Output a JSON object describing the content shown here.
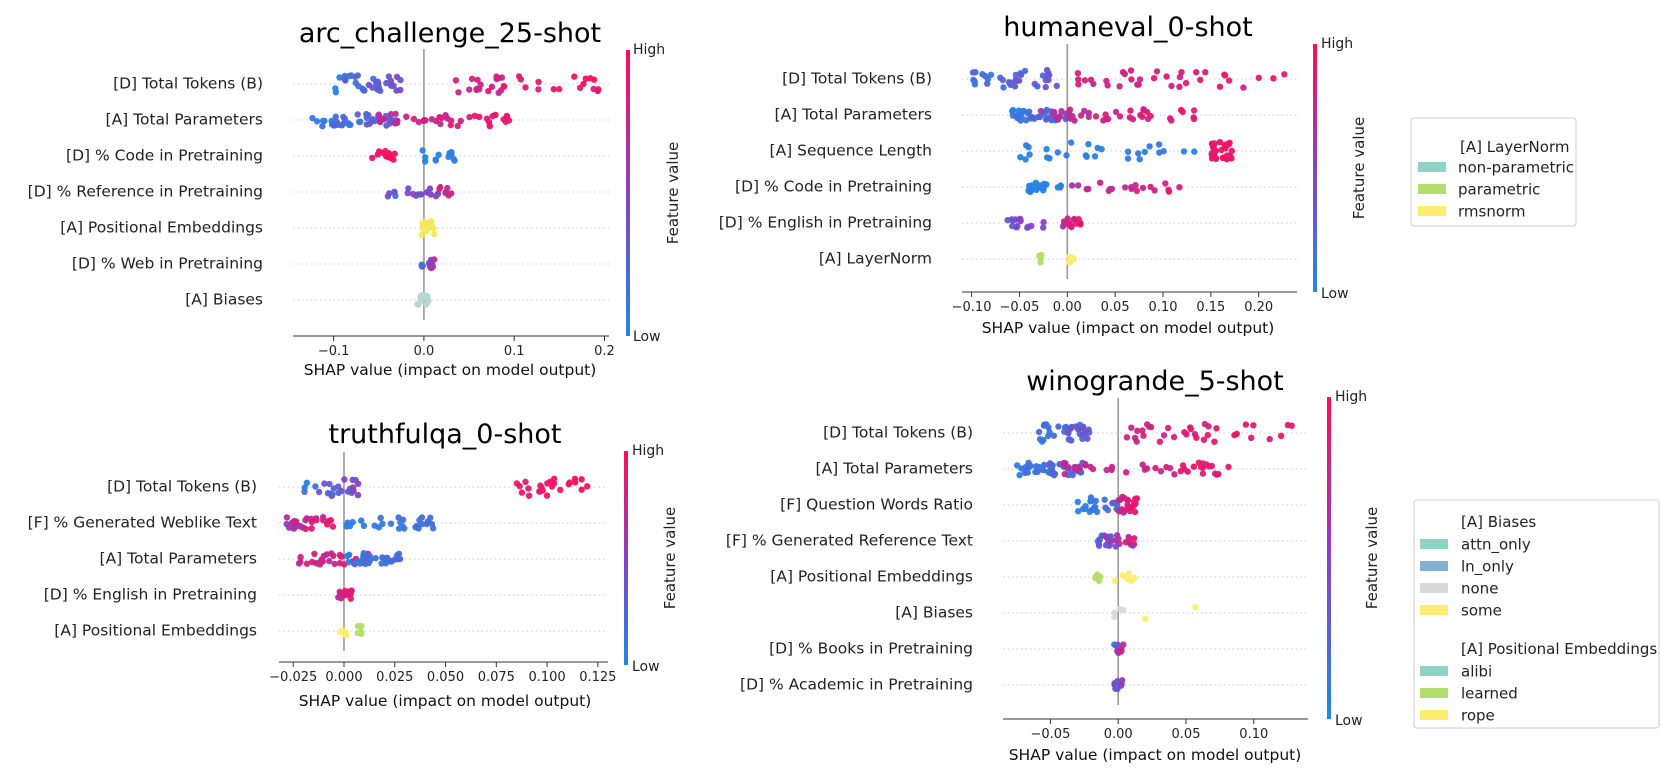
{
  "colors": {
    "low": "#1e88e5",
    "high": "#ff0d57",
    "zero_line": "#999999",
    "row_line": "#cccccc",
    "axis": "#333333"
  },
  "colorbar": {
    "high_label": "High",
    "low_label": "Low",
    "title": "Feature value"
  },
  "chart_data": [
    {
      "type": "scatter",
      "subtype": "shap_beeswarm",
      "title": "arc_challenge_25-shot",
      "xlabel": "SHAP value (impact on model output)",
      "xlim": [
        -0.145,
        0.205
      ],
      "xticks": [
        -0.1,
        0.0,
        0.1,
        0.2
      ],
      "xtick_labels": [
        "−0.1",
        "0.0",
        "0.1",
        "0.2"
      ],
      "features": [
        {
          "name": "[D] Total Tokens (B)",
          "n": 70,
          "spread": 0.45,
          "groups": [
            {
              "min": -0.1,
              "max": -0.025,
              "color": [
                0.0,
                0.55
              ]
            },
            {
              "min": 0.035,
              "max": 0.195,
              "color": [
                0.65,
                1.0
              ]
            }
          ]
        },
        {
          "name": "[A] Total Parameters",
          "n": 80,
          "spread": 0.32,
          "groups": [
            {
              "min": -0.13,
              "max": -0.03,
              "color": [
                0.0,
                0.4
              ]
            },
            {
              "min": -0.05,
              "max": 0.095,
              "color": [
                0.6,
                1.0
              ]
            }
          ]
        },
        {
          "name": "[D] % Code in Pretraining",
          "n": 24,
          "spread": 0.3,
          "groups": [
            {
              "min": -0.06,
              "max": -0.03,
              "color": [
                0.85,
                1.0
              ]
            },
            {
              "min": -0.002,
              "max": 0.035,
              "color": [
                0.0,
                0.1
              ]
            }
          ]
        },
        {
          "name": "[D] % Reference in Pretraining",
          "n": 26,
          "spread": 0.25,
          "groups": [
            {
              "min": -0.04,
              "max": 0.035,
              "color": [
                0.0,
                1.0
              ]
            }
          ]
        },
        {
          "name": "[A] Positional Embeddings",
          "n": 18,
          "spread": 0.35,
          "cat": "#f6e85a",
          "groups": [
            {
              "min": -0.003,
              "max": 0.012
            }
          ]
        },
        {
          "name": "[D] % Web in Pretraining",
          "n": 14,
          "spread": 0.25,
          "groups": [
            {
              "min": -0.003,
              "max": 0.012,
              "color": [
                0.0,
                1.0
              ]
            }
          ]
        },
        {
          "name": "[A] Biases",
          "n": 14,
          "spread": 0.25,
          "cat": "#b9d6d3",
          "groups": [
            {
              "min": -0.01,
              "max": 0.005
            }
          ]
        }
      ]
    },
    {
      "type": "scatter",
      "subtype": "shap_beeswarm",
      "title": "humaneval_0-shot",
      "xlabel": "SHAP value (impact on model output)",
      "xlim": [
        -0.11,
        0.24
      ],
      "xticks": [
        -0.1,
        -0.05,
        0.0,
        0.05,
        0.1,
        0.15,
        0.2
      ],
      "xtick_labels": [
        "−0.10",
        "−0.05",
        "0.00",
        "0.05",
        "0.10",
        "0.15",
        "0.20"
      ],
      "legend": {
        "title": "[A] LayerNorm",
        "entries": [
          {
            "label": "non-parametric",
            "color": "#8fd3c7"
          },
          {
            "label": "parametric",
            "color": "#b3de69"
          },
          {
            "label": "rmsnorm",
            "color": "#ffed6f"
          }
        ]
      },
      "features": [
        {
          "name": "[D] Total Tokens (B)",
          "n": 70,
          "spread": 0.45,
          "groups": [
            {
              "min": -0.1,
              "max": -0.01,
              "color": [
                0.0,
                0.5
              ]
            },
            {
              "min": 0.0,
              "max": 0.23,
              "color": [
                0.7,
                1.0
              ]
            }
          ]
        },
        {
          "name": "[A] Total Parameters",
          "n": 80,
          "spread": 0.3,
          "groups": [
            {
              "min": -0.06,
              "max": 0.0,
              "color": [
                0.0,
                0.4
              ]
            },
            {
              "min": -0.03,
              "max": 0.14,
              "color": [
                0.6,
                1.0
              ]
            }
          ]
        },
        {
          "name": "[A] Sequence Length",
          "n": 60,
          "spread": 0.45,
          "groups": [
            {
              "min": -0.065,
              "max": 0.17,
              "color": [
                0.0,
                0.15
              ]
            },
            {
              "min": 0.15,
              "max": 0.175,
              "color": [
                0.85,
                1.0
              ]
            }
          ]
        },
        {
          "name": "[D] % Code in Pretraining",
          "n": 40,
          "spread": 0.25,
          "groups": [
            {
              "min": -0.045,
              "max": -0.005,
              "color": [
                0.0,
                0.1
              ]
            },
            {
              "min": 0.0,
              "max": 0.12,
              "color": [
                0.55,
                1.0
              ]
            }
          ]
        },
        {
          "name": "[D] % English in Pretraining",
          "n": 30,
          "spread": 0.25,
          "groups": [
            {
              "min": -0.065,
              "max": -0.02,
              "color": [
                0.3,
                0.6
              ]
            },
            {
              "min": -0.005,
              "max": 0.015,
              "color": [
                0.6,
                1.0
              ]
            }
          ]
        },
        {
          "name": "[A] LayerNorm",
          "n": 12,
          "spread": 0.25,
          "cat": "#ffed6f",
          "groups": [
            {
              "min": -0.03,
              "max": -0.02,
              "cat": "#b3de69"
            },
            {
              "min": 0.0,
              "max": 0.008,
              "cat": "#ffed6f"
            }
          ]
        }
      ]
    },
    {
      "type": "scatter",
      "subtype": "shap_beeswarm",
      "title": "truthfulqa_0-shot",
      "xlabel": "SHAP value (impact on model output)",
      "xlim": [
        -0.032,
        0.13
      ],
      "xticks": [
        -0.025,
        0.0,
        0.025,
        0.05,
        0.075,
        0.1,
        0.125
      ],
      "xtick_labels": [
        "−0.025",
        "0.000",
        "0.025",
        "0.050",
        "0.075",
        "0.100",
        "0.125"
      ],
      "features": [
        {
          "name": "[D] Total Tokens (B)",
          "n": 50,
          "spread": 0.45,
          "groups": [
            {
              "min": -0.02,
              "max": 0.01,
              "color": [
                0.0,
                0.6
              ]
            },
            {
              "min": 0.082,
              "max": 0.122,
              "color": [
                0.85,
                1.0
              ]
            }
          ]
        },
        {
          "name": "[F] % Generated Weblike Text",
          "n": 55,
          "spread": 0.3,
          "groups": [
            {
              "min": -0.03,
              "max": -0.005,
              "color": [
                0.5,
                1.0
              ]
            },
            {
              "min": 0.0,
              "max": 0.045,
              "color": [
                0.0,
                0.2
              ]
            }
          ]
        },
        {
          "name": "[A] Total Parameters",
          "n": 60,
          "spread": 0.3,
          "groups": [
            {
              "min": -0.025,
              "max": 0.012,
              "color": [
                0.6,
                1.0
              ]
            },
            {
              "min": 0.0,
              "max": 0.028,
              "color": [
                0.0,
                0.3
              ]
            }
          ]
        },
        {
          "name": "[D] % English in Pretraining",
          "n": 16,
          "spread": 0.25,
          "groups": [
            {
              "min": -0.003,
              "max": 0.004,
              "color": [
                0.6,
                1.0
              ]
            }
          ]
        },
        {
          "name": "[A] Positional Embeddings",
          "n": 10,
          "spread": 0.25,
          "cat": "#ffed6f",
          "groups": [
            {
              "min": -0.002,
              "max": 0.003,
              "cat": "#ffed6f"
            },
            {
              "min": 0.004,
              "max": 0.009,
              "cat": "#b3de69"
            }
          ]
        }
      ]
    },
    {
      "type": "scatter",
      "subtype": "shap_beeswarm",
      "title": "winogrande_5-shot",
      "xlabel": "SHAP value (impact on model output)",
      "xlim": [
        -0.085,
        0.14
      ],
      "xticks": [
        -0.05,
        0.0,
        0.05,
        0.1
      ],
      "xtick_labels": [
        "−0.05",
        "0.00",
        "0.05",
        "0.10"
      ],
      "legend": {
        "groups": [
          {
            "title": "[A] Biases",
            "entries": [
              {
                "label": "attn_only",
                "color": "#8fd3c7"
              },
              {
                "label": "ln_only",
                "color": "#80b1d3"
              },
              {
                "label": "none",
                "color": "#d9d9d9"
              },
              {
                "label": "some",
                "color": "#ffed6f"
              }
            ]
          },
          {
            "title": "[A] Positional Embeddings",
            "entries": [
              {
                "label": "alibi",
                "color": "#8fd3c7"
              },
              {
                "label": "learned",
                "color": "#b3de69"
              },
              {
                "label": "rope",
                "color": "#ffed6f"
              }
            ]
          }
        ]
      },
      "features": [
        {
          "name": "[D] Total Tokens (B)",
          "n": 70,
          "spread": 0.45,
          "groups": [
            {
              "min": -0.06,
              "max": -0.02,
              "color": [
                0.0,
                0.5
              ]
            },
            {
              "min": 0.0,
              "max": 0.13,
              "color": [
                0.7,
                1.0
              ]
            }
          ]
        },
        {
          "name": "[A] Total Parameters",
          "n": 80,
          "spread": 0.32,
          "groups": [
            {
              "min": -0.075,
              "max": -0.025,
              "color": [
                0.0,
                0.4
              ]
            },
            {
              "min": -0.04,
              "max": 0.085,
              "color": [
                0.6,
                1.0
              ]
            }
          ]
        },
        {
          "name": "[F] Question Words Ratio",
          "n": 45,
          "spread": 0.4,
          "groups": [
            {
              "min": -0.033,
              "max": 0.0,
              "color": [
                0.0,
                0.3
              ]
            },
            {
              "min": 0.0,
              "max": 0.015,
              "color": [
                0.7,
                1.0
              ]
            }
          ]
        },
        {
          "name": "[F] % Generated Reference Text",
          "n": 30,
          "spread": 0.3,
          "groups": [
            {
              "min": -0.015,
              "max": 0.012,
              "color": [
                0.0,
                1.0
              ]
            }
          ]
        },
        {
          "name": "[A] Positional Embeddings",
          "n": 14,
          "spread": 0.3,
          "cat": "#ffed6f",
          "groups": [
            {
              "min": -0.018,
              "max": -0.013,
              "cat": "#b3de69"
            },
            {
              "min": -0.004,
              "max": 0.012,
              "cat": "#ffed6f"
            }
          ]
        },
        {
          "name": "[A] Biases",
          "n": 12,
          "spread": 0.3,
          "cat": "#d9d9d9",
          "groups": [
            {
              "min": -0.004,
              "max": 0.004,
              "cat": "#d9d9d9"
            },
            {
              "min": 0.02,
              "max": 0.02,
              "cat": "#ffed6f"
            },
            {
              "min": 0.057,
              "max": 0.057,
              "cat": "#ffed6f"
            }
          ]
        },
        {
          "name": "[D] % Books in Pretraining",
          "n": 12,
          "spread": 0.25,
          "groups": [
            {
              "min": -0.003,
              "max": 0.004,
              "color": [
                0.0,
                1.0
              ]
            }
          ]
        },
        {
          "name": "[D] % Academic in Pretraining",
          "n": 10,
          "spread": 0.25,
          "groups": [
            {
              "min": -0.003,
              "max": 0.004,
              "color": [
                0.0,
                1.0
              ]
            }
          ]
        }
      ]
    }
  ]
}
